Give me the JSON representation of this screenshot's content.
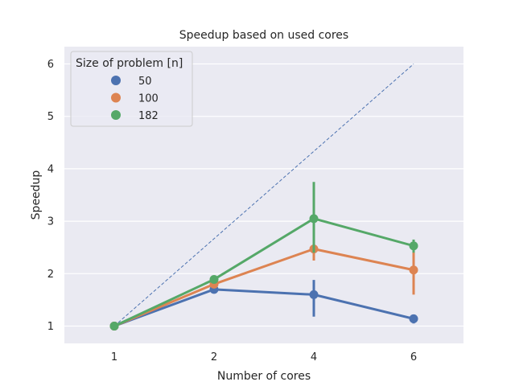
{
  "chart_data": {
    "type": "line",
    "title": "Speedup based on used cores",
    "xlabel": "Number of cores",
    "ylabel": "Speedup",
    "x": [
      "1",
      "2",
      "4",
      "6"
    ],
    "ylim": [
      0.67,
      6.33
    ],
    "yticks": [
      "1",
      "2",
      "3",
      "4",
      "5",
      "6"
    ],
    "grid": true,
    "legend": {
      "title": "Size of problem [n]",
      "placement": "top-left"
    },
    "series": [
      {
        "name": "50",
        "color": "#4c72b0",
        "values": [
          1.0,
          1.7,
          1.6,
          1.14
        ],
        "ci": [
          [
            0.95,
            1.05
          ],
          [
            1.66,
            1.74
          ],
          [
            1.18,
            1.88
          ],
          [
            1.05,
            1.22
          ]
        ]
      },
      {
        "name": "100",
        "color": "#dd8452",
        "values": [
          1.0,
          1.8,
          2.47,
          2.07
        ],
        "ci": [
          [
            0.96,
            1.04
          ],
          [
            1.75,
            1.85
          ],
          [
            2.25,
            2.7
          ],
          [
            1.6,
            2.45
          ]
        ]
      },
      {
        "name": "182",
        "color": "#55a868",
        "values": [
          1.0,
          1.89,
          3.05,
          2.53
        ],
        "ci": [
          [
            0.96,
            1.04
          ],
          [
            1.85,
            1.93
          ],
          [
            2.4,
            3.75
          ],
          [
            2.4,
            2.65
          ]
        ]
      }
    ],
    "reference_line": {
      "from": [
        1,
        1
      ],
      "to": [
        6,
        6
      ],
      "style": "dashed",
      "color": "#4c72b0"
    }
  }
}
